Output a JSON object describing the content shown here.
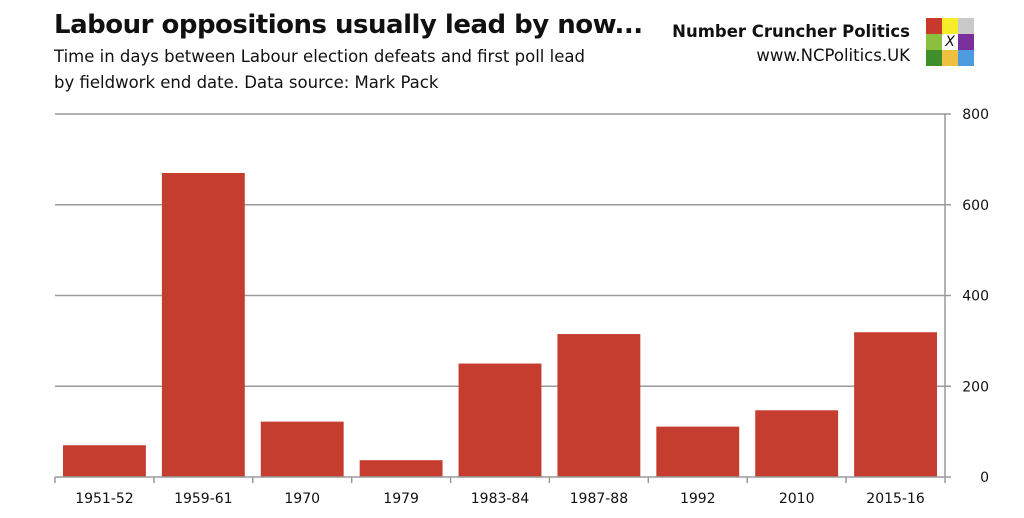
{
  "header": {
    "title": "Labour oppositions usually lead by now...",
    "subtitle_line1": "Time in days between Labour election defeats and first poll lead",
    "subtitle_line2": "by fieldwork end date. Data source: Mark Pack"
  },
  "brand": {
    "name": "Number Cruncher Politics",
    "url": "www.NCPolitics.UK",
    "logo_mark": "X",
    "logo_colors": [
      "#c8392b",
      "#f5ec2a",
      "#c9c9c9",
      "#8cbf3f",
      "#ffffff",
      "#7a2f9a",
      "#3f8f2b",
      "#efc040",
      "#4e9be0"
    ]
  },
  "chart_data": {
    "type": "bar",
    "title": "",
    "xlabel": "",
    "ylabel": "",
    "categories": [
      "1951-52",
      "1959-61",
      "1970",
      "1979",
      "1983-84",
      "1987-88",
      "1992",
      "2010",
      "2015-16"
    ],
    "values": [
      70,
      670,
      122,
      37,
      250,
      315,
      111,
      147,
      319
    ],
    "ylim": [
      0,
      800
    ],
    "yticks": [
      0,
      200,
      400,
      600,
      800
    ],
    "y_axis_side": "right",
    "grid": true,
    "legend": "none",
    "bar_color": "#c53d2e",
    "grid_color": "#9a9a9a"
  }
}
